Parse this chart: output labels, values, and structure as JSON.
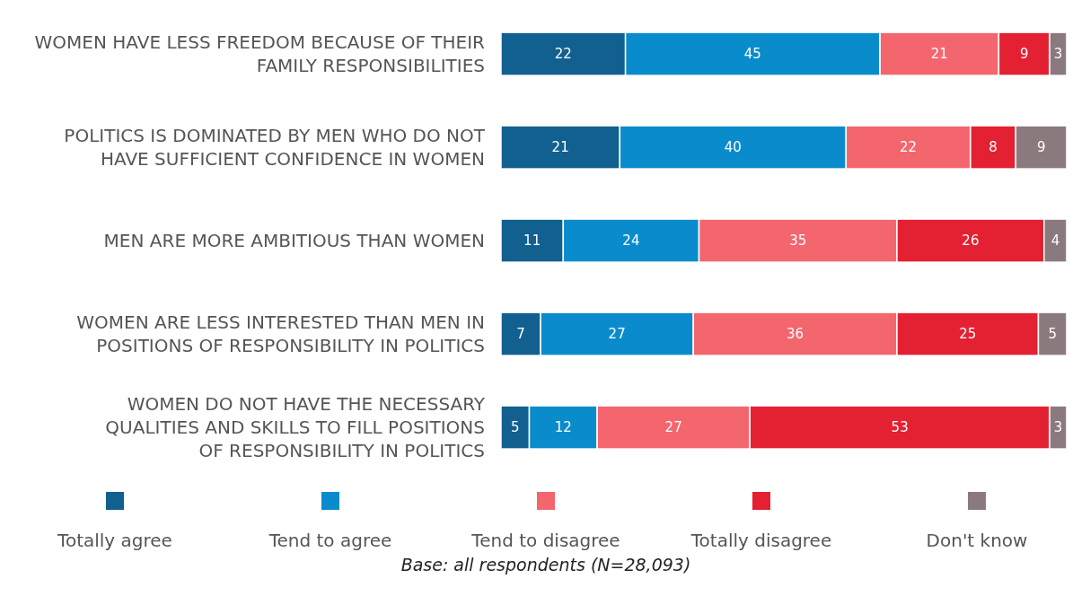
{
  "chart_data": {
    "type": "bar",
    "orientation": "horizontal",
    "stacked": true,
    "data_labels": true,
    "legend": "bottom",
    "categories": [
      "WOMEN HAVE LESS FREEDOM BECAUSE OF THEIR FAMILY RESPONSIBILITIES",
      "POLITICS IS DOMINATED BY MEN WHO DO NOT HAVE SUFFICIENT CONFIDENCE IN WOMEN",
      "MEN ARE MORE AMBITIOUS THAN WOMEN",
      "WOMEN ARE LESS INTERESTED THAN MEN IN POSITIONS OF RESPONSIBILITY IN POLITICS",
      "WOMEN DO NOT HAVE THE NECESSARY QUALITIES AND SKILLS TO FILL POSITIONS OF RESPONSIBILITY IN POLITICS"
    ],
    "series": [
      {
        "name": "Totally agree",
        "color": "#12608f",
        "values": [
          22,
          21,
          11,
          7,
          5
        ]
      },
      {
        "name": "Tend to agree",
        "color": "#0a8ccc",
        "values": [
          45,
          40,
          24,
          27,
          12
        ]
      },
      {
        "name": "Tend to disagree",
        "color": "#f4666e",
        "values": [
          21,
          22,
          35,
          36,
          27
        ]
      },
      {
        "name": "Totally disagree",
        "color": "#e32132",
        "values": [
          9,
          8,
          26,
          25,
          53
        ]
      },
      {
        "name": "Don't know",
        "color": "#8a7a7e",
        "values": [
          3,
          9,
          4,
          5,
          3
        ]
      }
    ],
    "annotations": [
      "Base: all respondents (N=28,093)"
    ]
  }
}
